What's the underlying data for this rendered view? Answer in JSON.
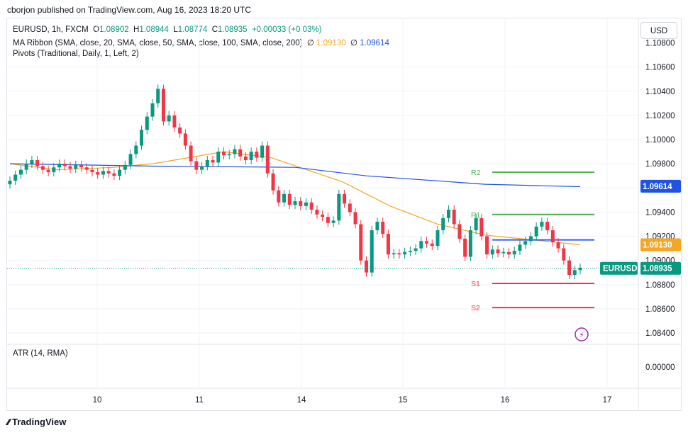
{
  "publisher": "cborjon published on TradingView.com, Aug 16, 2023 18:20 UTC",
  "legend": {
    "symbol_line": "EURUSD, 1h, FXCM",
    "o_label": "O",
    "o_val": "1.08902",
    "h_label": "H",
    "h_val": "1.08944",
    "l_label": "L",
    "l_val": "1.08774",
    "c_label": "C",
    "c_val": "1.08935",
    "change": "+0.00033 (+0.03%)",
    "ma_line": "MA Ribbon (SMA, close, 20, SMA, close, 50, SMA, close, 100, SMA, close, 200)",
    "ma_val1_prefix": "∅",
    "ma_val1": "1.09130",
    "ma_val2_prefix": "∅",
    "ma_val2": "1.09614",
    "pivots_line": "Pivots (Traditional, Daily, 1, Left, 2)"
  },
  "currency_button": "USD",
  "atr_label": "ATR (14, RMA)",
  "footer_brand": "TradingView",
  "chart_data": {
    "type": "candlestick",
    "symbol": "EURUSD",
    "yaxis_ticks": [
      "1.10600",
      "1.10400",
      "1.10200",
      "1.10000",
      "1.09800",
      "1.09600",
      "1.09400",
      "1.09200",
      "1.09000",
      "1.08800",
      "1.08600",
      "1.08400"
    ],
    "ytick_values": [
      1.106,
      1.104,
      1.102,
      1.1,
      1.098,
      1.096,
      1.094,
      1.092,
      1.09,
      1.088,
      1.086,
      1.084
    ],
    "top_partial_tick": "1.10800",
    "atr_tick": "0.00000",
    "xaxis_ticks": [
      "10",
      "11",
      "14",
      "15",
      "16",
      "17"
    ],
    "price_labels": [
      {
        "text": "1.09614",
        "value": 1.09614,
        "color": "#1e53e5"
      },
      {
        "text": "1.09130",
        "value": 1.0913,
        "color": "#f5a623"
      },
      {
        "text": "1.08935",
        "value": 1.08935,
        "color": "#089981",
        "prefix": "EURUSD"
      }
    ],
    "pivots": [
      {
        "name": "R2",
        "value": 1.0973,
        "color": "#4caf50"
      },
      {
        "name": "R1",
        "value": 1.0938,
        "color": "#4caf50"
      },
      {
        "name": "P",
        "value": 1.0917,
        "color": "#2962ff"
      },
      {
        "name": "S1",
        "value": 1.0881,
        "color": "#f23645"
      },
      {
        "name": "S2",
        "value": 1.0861,
        "color": "#f23645"
      }
    ],
    "colors": {
      "up": "#089981",
      "down": "#f23645",
      "ma_slow": "#1e53e5",
      "ma_fast": "#f5a623",
      "last_line": "#089981"
    },
    "closes": [
      1.0966,
      1.0971,
      1.0975,
      1.098,
      1.0983,
      1.0978,
      1.0975,
      1.0973,
      1.0977,
      1.098,
      1.0978,
      1.0976,
      1.0979,
      1.0977,
      1.0975,
      1.0973,
      1.0971,
      1.0974,
      1.0972,
      1.097,
      1.0975,
      1.0979,
      1.0988,
      1.0995,
      1.1008,
      1.1019,
      1.103,
      1.1042,
      1.1015,
      1.102,
      1.101,
      1.1005,
      1.0995,
      1.0982,
      1.0975,
      1.0978,
      1.0983,
      1.0981,
      1.099,
      1.0987,
      1.0988,
      1.0992,
      1.0986,
      1.0983,
      1.099,
      1.0985,
      1.0995,
      1.0972,
      1.0958,
      1.0948,
      1.0955,
      1.0946,
      1.0949,
      1.0945,
      1.0948,
      1.0942,
      1.0938,
      1.0936,
      1.0931,
      1.0933,
      1.0955,
      1.0947,
      1.094,
      1.093,
      1.09,
      1.089,
      1.0925,
      1.0932,
      1.0922,
      1.0905,
      1.0906,
      1.0905,
      1.0907,
      1.0908,
      1.091,
      1.0916,
      1.0914,
      1.0912,
      1.0925,
      1.0935,
      1.0942,
      1.093,
      1.0918,
      1.0903,
      1.0925,
      1.0935,
      1.092,
      1.0905,
      1.0909,
      1.0906,
      1.0907,
      1.0905,
      1.0908,
      1.0913,
      1.0916,
      1.092,
      1.0928,
      1.0932,
      1.0925,
      1.0915,
      1.091,
      1.09,
      1.0888,
      1.0892,
      1.0894
    ],
    "ma_slow": [
      [
        0,
        1.098
      ],
      [
        30,
        1.0978
      ],
      [
        60,
        1.0977
      ],
      [
        75,
        1.097
      ],
      [
        100,
        1.0963
      ],
      [
        120,
        1.0961
      ]
    ],
    "ma_fast": [
      [
        0,
        1.098
      ],
      [
        10,
        1.0975
      ],
      [
        22,
        1.0977
      ],
      [
        30,
        1.098
      ],
      [
        45,
        1.099
      ],
      [
        55,
        1.0985
      ],
      [
        70,
        1.0965
      ],
      [
        80,
        1.0945
      ],
      [
        90,
        1.093
      ],
      [
        100,
        1.0921
      ],
      [
        110,
        1.0917
      ],
      [
        120,
        1.0913
      ]
    ]
  }
}
